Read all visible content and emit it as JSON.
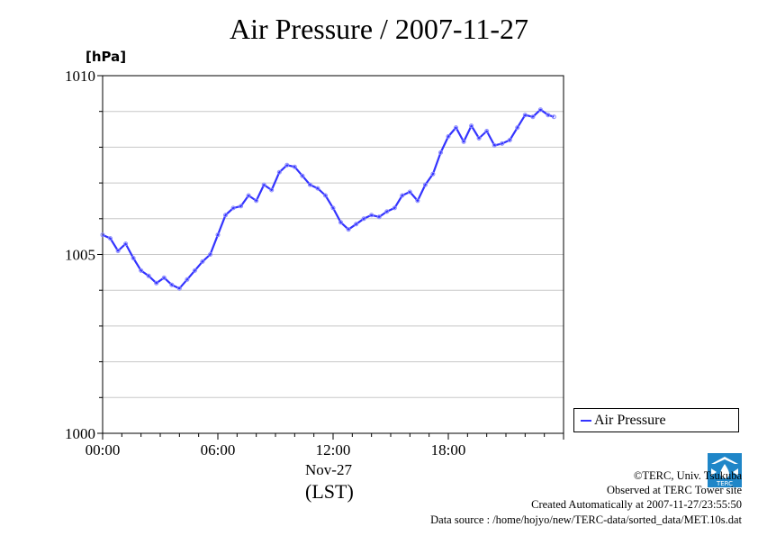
{
  "title": "Air Pressure / 2007-11-27",
  "unit_label": "[hPa]",
  "x_date_label": "Nov-27",
  "x_zone_label": "(LST)",
  "legend_label": "Air Pressure",
  "credits": {
    "copyright": "©TERC, Univ. Tsukuba",
    "observed": "Observed at TERC Tower site",
    "created": "Created Automatically at 2007-11-27/23:55:50",
    "source": "Data source : /home/hojyo/new/TERC-data/sorted_data/MET.10s.dat"
  },
  "logo_text": "TERC",
  "colors": {
    "series": "#3333ff",
    "marker": "#8a8aff",
    "grid": "#c8c8c8",
    "logo": "#1f86c8"
  },
  "chart_data": {
    "type": "line",
    "title": "Air Pressure / 2007-11-27",
    "ylabel": "[hPa]",
    "xlabel": "Nov-27 (LST)",
    "xlim": [
      0,
      24
    ],
    "ylim": [
      1000,
      1010
    ],
    "y_ticks": [
      1000,
      1005,
      1010
    ],
    "x_ticks": [
      {
        "value": 0,
        "label": "00:00"
      },
      {
        "value": 6,
        "label": "06:00"
      },
      {
        "value": 12,
        "label": "12:00"
      },
      {
        "value": 18,
        "label": "18:00"
      }
    ],
    "grid": true,
    "legend_position": "bottom-right outside",
    "series": [
      {
        "name": "Air Pressure",
        "points": [
          [
            0.0,
            1005.55
          ],
          [
            0.4,
            1005.45
          ],
          [
            0.8,
            1005.1
          ],
          [
            1.2,
            1005.3
          ],
          [
            1.6,
            1004.9
          ],
          [
            2.0,
            1004.55
          ],
          [
            2.4,
            1004.4
          ],
          [
            2.8,
            1004.2
          ],
          [
            3.2,
            1004.35
          ],
          [
            3.6,
            1004.15
          ],
          [
            4.0,
            1004.05
          ],
          [
            4.4,
            1004.3
          ],
          [
            4.8,
            1004.55
          ],
          [
            5.2,
            1004.8
          ],
          [
            5.6,
            1005.0
          ],
          [
            6.0,
            1005.55
          ],
          [
            6.4,
            1006.1
          ],
          [
            6.8,
            1006.3
          ],
          [
            7.2,
            1006.35
          ],
          [
            7.6,
            1006.65
          ],
          [
            8.0,
            1006.5
          ],
          [
            8.4,
            1006.95
          ],
          [
            8.8,
            1006.8
          ],
          [
            9.2,
            1007.3
          ],
          [
            9.6,
            1007.5
          ],
          [
            10.0,
            1007.45
          ],
          [
            10.4,
            1007.2
          ],
          [
            10.8,
            1006.95
          ],
          [
            11.2,
            1006.85
          ],
          [
            11.6,
            1006.65
          ],
          [
            12.0,
            1006.3
          ],
          [
            12.4,
            1005.9
          ],
          [
            12.8,
            1005.7
          ],
          [
            13.2,
            1005.85
          ],
          [
            13.6,
            1006.0
          ],
          [
            14.0,
            1006.1
          ],
          [
            14.4,
            1006.05
          ],
          [
            14.8,
            1006.2
          ],
          [
            15.2,
            1006.3
          ],
          [
            15.6,
            1006.65
          ],
          [
            16.0,
            1006.75
          ],
          [
            16.4,
            1006.5
          ],
          [
            16.8,
            1006.95
          ],
          [
            17.2,
            1007.25
          ],
          [
            17.6,
            1007.85
          ],
          [
            18.0,
            1008.3
          ],
          [
            18.4,
            1008.55
          ],
          [
            18.8,
            1008.15
          ],
          [
            19.2,
            1008.6
          ],
          [
            19.6,
            1008.25
          ],
          [
            20.0,
            1008.45
          ],
          [
            20.4,
            1008.05
          ],
          [
            20.8,
            1008.1
          ],
          [
            21.2,
            1008.2
          ],
          [
            21.6,
            1008.55
          ],
          [
            22.0,
            1008.9
          ],
          [
            22.4,
            1008.85
          ],
          [
            22.8,
            1009.05
          ],
          [
            23.2,
            1008.9
          ],
          [
            23.5,
            1008.85
          ]
        ]
      }
    ]
  }
}
